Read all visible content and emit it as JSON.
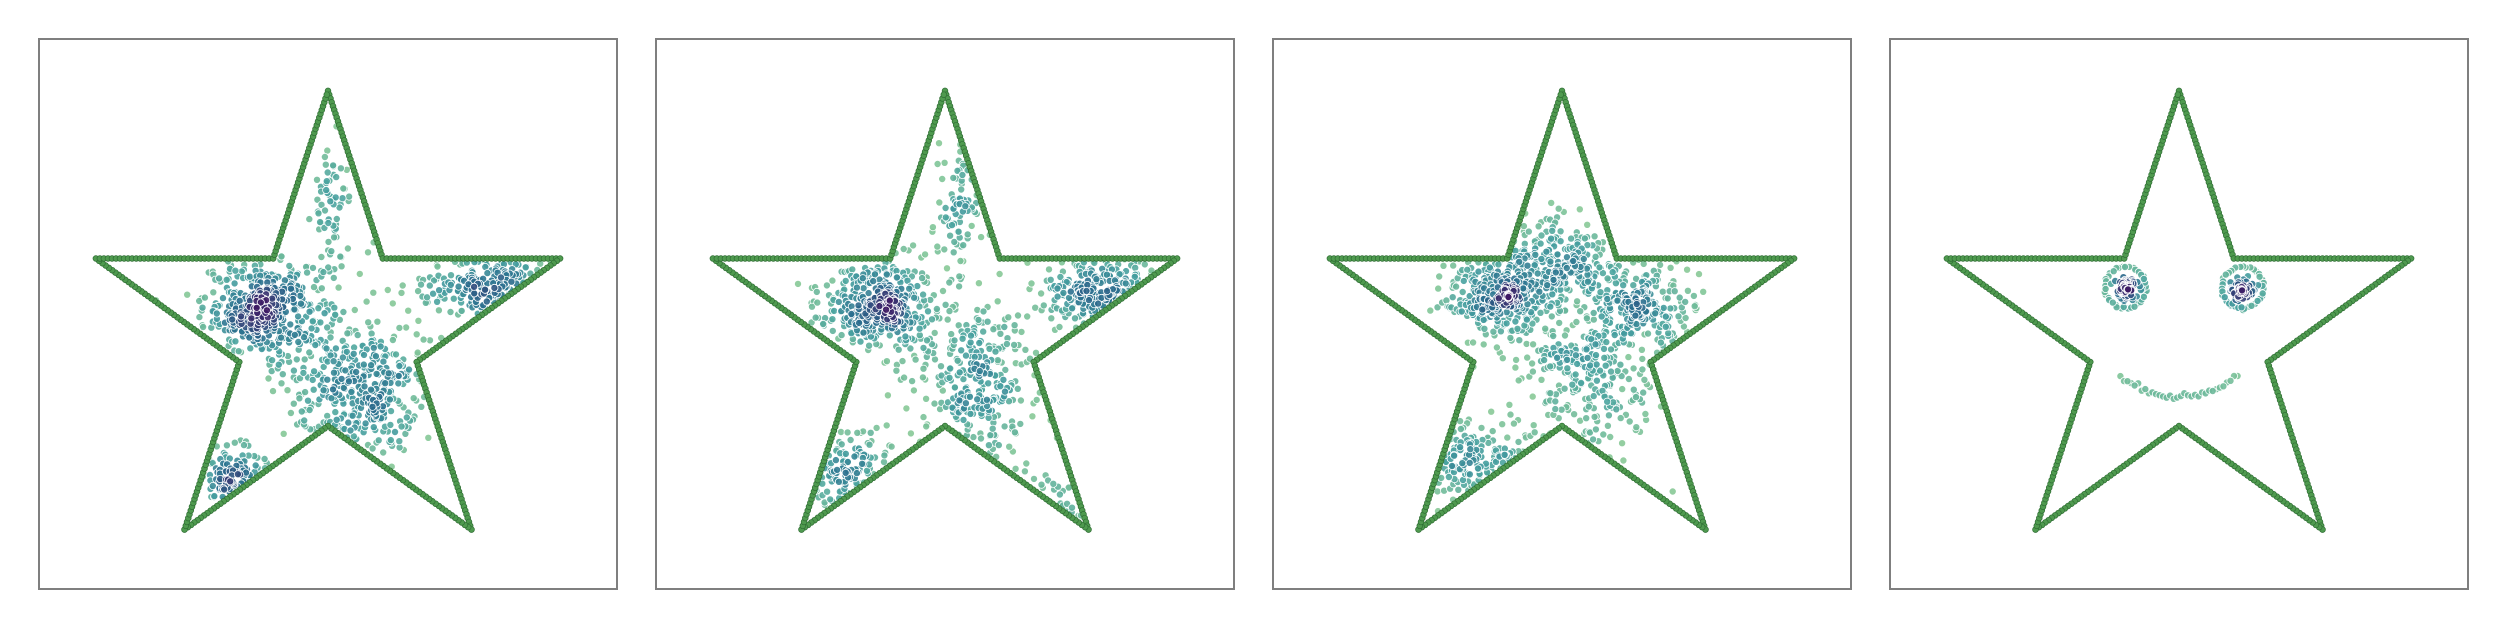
{
  "chart_data": [
    {
      "type": "scatter",
      "title": "",
      "xlabel": "",
      "ylabel": "",
      "grid": false,
      "legend": "none",
      "xlim": [
        -1.18,
        1.18
      ],
      "ylim": [
        -1.05,
        1.21
      ],
      "series": [
        {
          "role": "outline",
          "color": "#4f9a4f",
          "closed": true,
          "x": [
            0,
            0.2245,
            0.9511,
            0.3633,
            0.5878,
            0,
            -0.5878,
            -0.3633,
            -0.9511,
            -0.2245
          ],
          "y": [
            1,
            0.309,
            0.309,
            -0.118,
            -0.809,
            -0.382,
            -0.809,
            -0.118,
            0.309,
            0.309
          ]
        },
        {
          "role": "samples",
          "colormap": "viridis_r",
          "points_per_density_unit": 420,
          "clusters": [
            {
              "x": -0.25,
              "y": 0.1,
              "sx": 0.13,
              "sy": 0.1,
              "w": 1.0
            },
            {
              "x": 0.13,
              "y": -0.23,
              "sx": 0.15,
              "sy": 0.15,
              "w": 0.85
            },
            {
              "x": 0.66,
              "y": 0.19,
              "sx": 0.15,
              "sy": 0.07,
              "w": 0.45
            },
            {
              "x": -0.38,
              "y": -0.6,
              "sx": 0.07,
              "sy": 0.07,
              "w": 0.25
            },
            {
              "x": 0.02,
              "y": 0.54,
              "sx": 0.04,
              "sy": 0.15,
              "w": 0.15
            }
          ]
        }
      ]
    },
    {
      "type": "scatter",
      "title": "",
      "xlabel": "",
      "ylabel": "",
      "grid": false,
      "legend": "none",
      "xlim": [
        -1.18,
        1.18
      ],
      "ylim": [
        -1.05,
        1.21
      ],
      "series": [
        {
          "role": "outline",
          "color": "#4f9a4f",
          "closed": true,
          "x": [
            0,
            0.2245,
            0.9511,
            0.3633,
            0.5878,
            0,
            -0.5878,
            -0.3633,
            -0.9511,
            -0.2245
          ],
          "y": [
            1,
            0.309,
            0.309,
            -0.118,
            -0.809,
            -0.382,
            -0.809,
            -0.118,
            0.309,
            0.309
          ]
        },
        {
          "role": "samples",
          "colormap": "viridis_r",
          "points_per_density_unit": 420,
          "clusters": [
            {
              "x": -0.28,
              "y": 0.12,
              "sx": 0.12,
              "sy": 0.09,
              "w": 0.9
            },
            {
              "x": 0.1,
              "y": -0.2,
              "sx": 0.14,
              "sy": 0.17,
              "w": 0.75
            },
            {
              "x": 0.65,
              "y": 0.17,
              "sx": 0.13,
              "sy": 0.08,
              "w": 0.5
            },
            {
              "x": -0.4,
              "y": -0.58,
              "sx": 0.12,
              "sy": 0.09,
              "w": 0.3
            },
            {
              "x": 0.05,
              "y": 0.52,
              "sx": 0.06,
              "sy": 0.15,
              "w": 0.2
            },
            {
              "x": 0.4,
              "y": -0.7,
              "sx": 0.08,
              "sy": 0.06,
              "w": 0.06
            }
          ]
        }
      ]
    },
    {
      "type": "scatter",
      "title": "",
      "xlabel": "",
      "ylabel": "",
      "grid": false,
      "legend": "none",
      "xlim": [
        -1.18,
        1.18
      ],
      "ylim": [
        -1.05,
        1.21
      ],
      "series": [
        {
          "role": "outline",
          "color": "#4f9a4f",
          "closed": true,
          "x": [
            0,
            0.2245,
            0.9511,
            0.3633,
            0.5878,
            0,
            -0.5878,
            -0.3633,
            -0.9511,
            -0.2245
          ],
          "y": [
            1,
            0.309,
            0.309,
            -0.118,
            -0.809,
            -0.382,
            -0.809,
            -0.118,
            0.309,
            0.309
          ]
        },
        {
          "role": "samples",
          "colormap": "viridis_r",
          "points_per_density_unit": 420,
          "clusters": [
            {
              "x": -0.25,
              "y": 0.16,
              "sx": 0.11,
              "sy": 0.09,
              "w": 0.8
            },
            {
              "x": 0.3,
              "y": 0.12,
              "sx": 0.12,
              "sy": 0.09,
              "w": 0.55
            },
            {
              "x": -0.02,
              "y": 0.3,
              "sx": 0.13,
              "sy": 0.09,
              "w": 0.5
            },
            {
              "x": 0.1,
              "y": -0.15,
              "sx": 0.16,
              "sy": 0.16,
              "w": 0.7
            },
            {
              "x": -0.4,
              "y": -0.52,
              "sx": 0.14,
              "sy": 0.08,
              "w": 0.35
            }
          ]
        }
      ]
    },
    {
      "type": "scatter",
      "title": "",
      "xlabel": "",
      "ylabel": "",
      "grid": false,
      "legend": "none",
      "xlim": [
        -1.18,
        1.18
      ],
      "ylim": [
        -1.05,
        1.21
      ],
      "series": [
        {
          "role": "outline",
          "color": "#4f9a4f",
          "closed": true,
          "x": [
            0,
            0.2245,
            0.9511,
            0.3633,
            0.5878,
            0,
            -0.5878,
            -0.3633,
            -0.9511,
            -0.2245
          ],
          "y": [
            1,
            0.309,
            0.309,
            -0.118,
            -0.809,
            -0.382,
            -0.809,
            -0.118,
            0.309,
            0.309
          ]
        },
        {
          "role": "samples",
          "colormap": "viridis_r",
          "points_per_density_unit": 160,
          "clusters": [
            {
              "x": -0.22,
              "y": 0.18,
              "sx": 0.025,
              "sy": 0.025,
              "w": 0.45
            },
            {
              "x": 0.26,
              "y": 0.18,
              "sx": 0.025,
              "sy": 0.025,
              "w": 0.45
            }
          ],
          "rings": [
            {
              "x": -0.22,
              "y": 0.19,
              "r": 0.085,
              "n": 38
            },
            {
              "x": 0.26,
              "y": 0.19,
              "r": 0.085,
              "n": 38
            }
          ],
          "smile": {
            "x0": -0.24,
            "x1": 0.24,
            "y": -0.18,
            "depth": 0.08,
            "n": 34
          }
        }
      ]
    }
  ]
}
